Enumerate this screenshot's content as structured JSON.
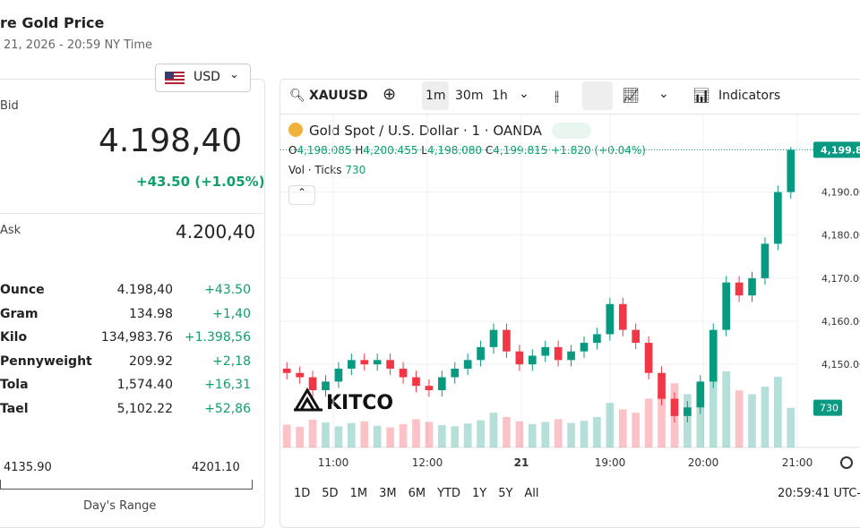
{
  "header": {
    "title": "re Gold Price",
    "timestamp": "21, 2026 - 20:59 NY Time",
    "currency": "USD"
  },
  "quote": {
    "bid_label": "Bid",
    "bid": "4.198,40",
    "change": "+43.50 (+1.05%)",
    "ask_label": "Ask",
    "ask": "4.200,40"
  },
  "units": [
    [
      "Ounce",
      "4.198,40",
      "+43.50"
    ],
    [
      "Gram",
      "134.98",
      "+1,40"
    ],
    [
      "Kilo",
      "134,983.76",
      "+1.398,56"
    ],
    [
      "Pennyweight",
      "209.92",
      "+2,18"
    ],
    [
      "Tola",
      "1,574.40",
      "+16,31"
    ],
    [
      "Tael",
      "5,102.22",
      "+52,86"
    ]
  ],
  "range": {
    "low": "4135.90",
    "high": "4201.10",
    "label": "Day's Range"
  },
  "toolbar": {
    "symbol": "XAUUSD",
    "intervals": [
      "1m",
      "30m",
      "1h"
    ],
    "indicators": "Indicators"
  },
  "legend": {
    "title": "Gold Spot / U.S. Dollar · 1 · OANDA",
    "o_key": "O",
    "o": "4,198.085",
    "h_key": "H",
    "h": "4,200.455",
    "l_key": "L",
    "l": "4,198.080",
    "c_key": "C",
    "c": "4,199.815",
    "chg": "+1.820 (+0.04%)",
    "vol_label": "Vol · Ticks",
    "vol": "730"
  },
  "logo": "KITCO",
  "ranges": [
    "1D",
    "5D",
    "1M",
    "3M",
    "6M",
    "YTD",
    "1Y",
    "5Y",
    "All"
  ],
  "clock": "20:59:41 UTC-",
  "chart": {
    "type": "candlestick",
    "x_labels": [
      "11:00",
      "12:00",
      "21",
      "19:00",
      "20:00",
      "21:00"
    ],
    "ylim": [
      4130.7,
      4208
    ],
    "yticks": [
      {
        "value": 4150,
        "label": "4,150.00"
      },
      {
        "value": 4160,
        "label": "4,160.00"
      },
      {
        "value": 4170,
        "label": "4,170.00"
      },
      {
        "value": 4180,
        "label": "4,180.00"
      },
      {
        "value": 4190,
        "label": "4,190.00"
      }
    ],
    "last_price": {
      "value": 4199.815,
      "label": "4,199.8"
    },
    "last_volume": {
      "value": 730,
      "label": "730"
    },
    "up_color": "#089981",
    "down_color": "#f23645",
    "open": [
      4149,
      4148,
      4147,
      4144,
      4146,
      4149,
      4151,
      4150,
      4151,
      4149,
      4147,
      4145,
      4144,
      4147,
      4149,
      4151,
      4154,
      4158,
      4153,
      4150,
      4152,
      4154,
      4151,
      4153,
      4155,
      4157,
      4164,
      4158,
      4155,
      4148,
      4142,
      4138,
      4140,
      4146,
      4158,
      4169,
      4166,
      4170,
      4178,
      4190
    ],
    "high": [
      4150.5,
      4149.5,
      4148.5,
      4147.5,
      4150.5,
      4152.5,
      4152.5,
      4152.5,
      4152.5,
      4150.5,
      4148.5,
      4146.5,
      4148.5,
      4150.5,
      4152.5,
      4155.5,
      4159.5,
      4159.5,
      4154.5,
      4153.5,
      4155.5,
      4155.5,
      4154.5,
      4156.5,
      4158.5,
      4165.5,
      4165.5,
      4159.5,
      4156.5,
      4149.5,
      4143.5,
      4141.5,
      4147.5,
      4159.5,
      4170.5,
      4170.5,
      4171.5,
      4179.5,
      4191.5,
      4200.455
    ],
    "low": [
      4146.5,
      4145.5,
      4142.5,
      4142.5,
      4144.5,
      4147.5,
      4148.5,
      4148.5,
      4147.5,
      4145.5,
      4143.5,
      4142.5,
      4142.5,
      4145.5,
      4147.5,
      4149.5,
      4152.5,
      4151.5,
      4148.5,
      4148.5,
      4150.5,
      4149.5,
      4149.5,
      4151.5,
      4153.5,
      4155.5,
      4156.5,
      4153.5,
      4146.5,
      4140.5,
      4136.5,
      4136.5,
      4138.5,
      4144.5,
      4156.5,
      4164.5,
      4164.5,
      4168.5,
      4176.5,
      4188.5
    ],
    "close": [
      4148,
      4147,
      4144,
      4146,
      4149,
      4151,
      4150,
      4151,
      4149,
      4147,
      4145,
      4144,
      4147,
      4149,
      4151,
      4154,
      4158,
      4153,
      4150,
      4152,
      4154,
      4151,
      4153,
      4155,
      4157,
      4164,
      4158,
      4155,
      4148,
      4142,
      4138,
      4140,
      4146,
      4158,
      4169,
      4166,
      4170,
      4178,
      4190,
      4199.815
    ],
    "volume": [
      420,
      380,
      510,
      460,
      390,
      450,
      480,
      400,
      370,
      430,
      520,
      470,
      410,
      390,
      440,
      500,
      640,
      560,
      480,
      430,
      470,
      520,
      450,
      490,
      560,
      820,
      700,
      640,
      900,
      1050,
      1180,
      980,
      1100,
      1250,
      1400,
      1050,
      980,
      1120,
      1300,
      730
    ]
  }
}
